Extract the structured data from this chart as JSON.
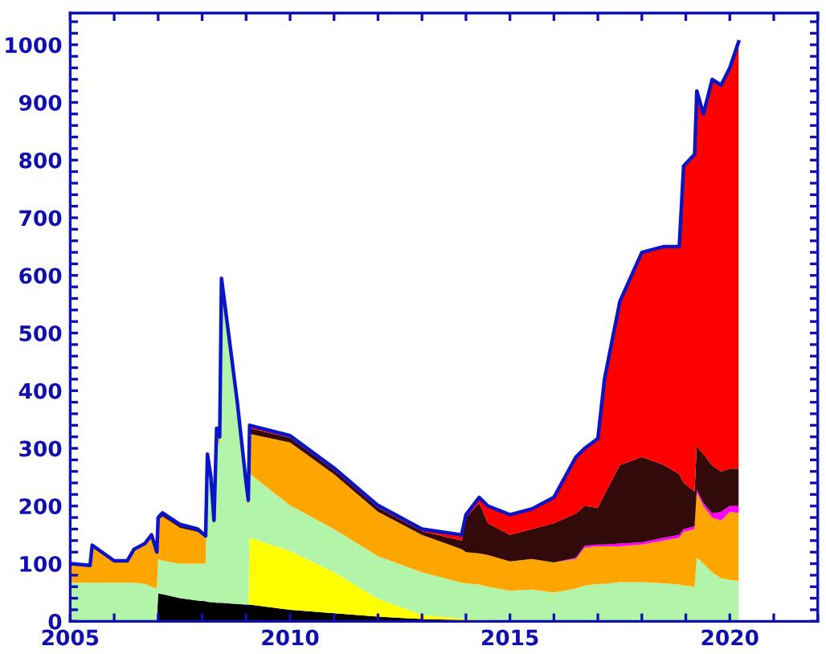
{
  "chart_data": {
    "type": "area",
    "stacked": true,
    "grid": false,
    "legend": false,
    "x": [
      2005.0,
      2005.45,
      2005.5,
      2006.0,
      2006.3,
      2006.45,
      2006.7,
      2006.85,
      2006.97,
      2007.0,
      2007.1,
      2007.5,
      2007.9,
      2008.08,
      2008.12,
      2008.2,
      2008.27,
      2008.33,
      2008.4,
      2008.44,
      2008.6,
      2008.8,
      2009.0,
      2009.05,
      2009.08,
      2010.0,
      2011.0,
      2012.0,
      2013.0,
      2013.9,
      2014.0,
      2014.3,
      2014.5,
      2015.0,
      2015.5,
      2016.0,
      2016.5,
      2016.7,
      2017.0,
      2017.15,
      2017.5,
      2018.0,
      2018.5,
      2018.85,
      2018.95,
      2019.2,
      2019.25,
      2019.4,
      2019.6,
      2019.8,
      2020.0,
      2020.2
    ],
    "series": [
      {
        "color": "#000000",
        "values": [
          0,
          0,
          0,
          0,
          0,
          0,
          0,
          0,
          0,
          48,
          47,
          40,
          36,
          35,
          34,
          33,
          33,
          32,
          32,
          32,
          31,
          30,
          29,
          29,
          29,
          20,
          14,
          8,
          4,
          2,
          2,
          1,
          1,
          0,
          0,
          0,
          0,
          0,
          0,
          0,
          0,
          0,
          0,
          0,
          0,
          0,
          0,
          0,
          0,
          0,
          0,
          0
        ]
      },
      {
        "color": "#ffff00",
        "values": [
          0,
          0,
          0,
          0,
          0,
          0,
          0,
          0,
          0,
          0,
          0,
          0,
          0,
          0,
          0,
          0,
          0,
          0,
          0,
          0,
          0,
          0,
          0,
          0,
          116,
          102,
          71,
          31,
          7,
          3,
          2,
          2,
          1,
          0,
          0,
          0,
          0,
          0,
          0,
          0,
          0,
          0,
          0,
          0,
          0,
          0,
          0,
          0,
          0,
          0,
          0,
          0
        ]
      },
      {
        "color": "#b3f5a8",
        "values": [
          67,
          67,
          67,
          67,
          67,
          67,
          65,
          60,
          57,
          60,
          58,
          60,
          64,
          65,
          236,
          202,
          127,
          283,
          273,
          538,
          449,
          330,
          196,
          166,
          111,
          79,
          75,
          74,
          74,
          62,
          62,
          61,
          58,
          53,
          55,
          50,
          57,
          62,
          65,
          65,
          68,
          68,
          66,
          64,
          62,
          60,
          111,
          100,
          85,
          75,
          72,
          70
        ]
      },
      {
        "color": "#ffa500",
        "values": [
          33,
          30,
          65,
          38,
          38,
          58,
          70,
          90,
          63,
          67,
          77,
          62,
          55,
          45,
          15,
          10,
          10,
          15,
          10,
          18,
          13,
          13,
          10,
          10,
          69,
          109,
          95,
          77,
          65,
          58,
          54,
          54,
          55,
          51,
          53,
          52,
          51,
          66,
          65,
          65,
          62,
          65,
          74,
          81,
          93,
          100,
          112,
          100,
          95,
          100,
          118,
          118
        ]
      },
      {
        "color": "#ff00ff",
        "values": [
          0,
          0,
          0,
          0,
          0,
          0,
          0,
          0,
          0,
          0,
          0,
          0,
          0,
          0,
          0,
          0,
          0,
          0,
          0,
          0,
          0,
          0,
          0,
          0,
          0,
          0,
          0,
          0,
          0,
          0,
          0,
          0,
          0,
          0,
          0,
          0,
          2,
          3,
          3,
          3,
          5,
          4,
          5,
          5,
          5,
          5,
          5,
          5,
          7,
          15,
          10,
          12
        ]
      },
      {
        "color": "#330a0a",
        "values": [
          0,
          0,
          0,
          0,
          0,
          0,
          0,
          0,
          0,
          5,
          6,
          6,
          5,
          3,
          5,
          5,
          5,
          5,
          5,
          7,
          7,
          7,
          5,
          5,
          10,
          8,
          7,
          7,
          6,
          15,
          60,
          87,
          55,
          46,
          52,
          68,
          77,
          69,
          64,
          87,
          136,
          148,
          126,
          105,
          80,
          60,
          76,
          85,
          83,
          70,
          65,
          65
        ]
      },
      {
        "color": "#ff0000",
        "values": [
          0,
          0,
          0,
          0,
          0,
          0,
          0,
          0,
          0,
          0,
          0,
          0,
          0,
          0,
          0,
          0,
          0,
          0,
          0,
          0,
          0,
          0,
          0,
          0,
          5,
          4,
          4,
          4,
          4,
          10,
          5,
          10,
          30,
          35,
          35,
          45,
          98,
          100,
          120,
          200,
          284,
          355,
          379,
          395,
          550,
          585,
          616,
          590,
          670,
          670,
          695,
          740
        ]
      }
    ],
    "xlim": [
      2005,
      2022
    ],
    "xticks": [
      2005,
      {
        "value": 2006,
        "label": null
      },
      {
        "value": 2007,
        "label": null
      },
      {
        "value": 2008,
        "label": null
      },
      {
        "value": 2009,
        "label": null
      },
      2010,
      {
        "value": 2011,
        "label": null
      },
      {
        "value": 2012,
        "label": null
      },
      {
        "value": 2013,
        "label": null
      },
      {
        "value": 2014,
        "label": null
      },
      2015,
      {
        "value": 2016,
        "label": null
      },
      {
        "value": 2017,
        "label": null
      },
      {
        "value": 2018,
        "label": null
      },
      {
        "value": 2019,
        "label": null
      },
      2020,
      {
        "value": 2021,
        "label": null
      },
      {
        "value": 2022,
        "label": null
      }
    ],
    "ylim": [
      0,
      1055
    ],
    "yticks": [
      0,
      {
        "value": 20,
        "label": null
      },
      {
        "value": 40,
        "label": null
      },
      {
        "value": 60,
        "label": null
      },
      {
        "value": 80,
        "label": null
      },
      100,
      {
        "value": 120,
        "label": null
      },
      {
        "value": 140,
        "label": null
      },
      {
        "value": 160,
        "label": null
      },
      {
        "value": 180,
        "label": null
      },
      200,
      {
        "value": 220,
        "label": null
      },
      {
        "value": 240,
        "label": null
      },
      {
        "value": 260,
        "label": null
      },
      {
        "value": 280,
        "label": null
      },
      300,
      {
        "value": 320,
        "label": null
      },
      {
        "value": 340,
        "label": null
      },
      {
        "value": 360,
        "label": null
      },
      {
        "value": 380,
        "label": null
      },
      400,
      {
        "value": 420,
        "label": null
      },
      {
        "value": 440,
        "label": null
      },
      {
        "value": 460,
        "label": null
      },
      {
        "value": 480,
        "label": null
      },
      500,
      {
        "value": 520,
        "label": null
      },
      {
        "value": 540,
        "label": null
      },
      {
        "value": 560,
        "label": null
      },
      {
        "value": 580,
        "label": null
      },
      600,
      {
        "value": 620,
        "label": null
      },
      {
        "value": 640,
        "label": null
      },
      {
        "value": 660,
        "label": null
      },
      {
        "value": 680,
        "label": null
      },
      700,
      {
        "value": 720,
        "label": null
      },
      {
        "value": 740,
        "label": null
      },
      {
        "value": 760,
        "label": null
      },
      {
        "value": 780,
        "label": null
      },
      800,
      {
        "value": 820,
        "label": null
      },
      {
        "value": 840,
        "label": null
      },
      {
        "value": 860,
        "label": null
      },
      {
        "value": 880,
        "label": null
      },
      900,
      {
        "value": 920,
        "label": null
      },
      {
        "value": 940,
        "label": null
      },
      {
        "value": 960,
        "label": null
      },
      {
        "value": 980,
        "label": null
      },
      1000,
      {
        "value": 1020,
        "label": null
      },
      {
        "value": 1040,
        "label": null
      }
    ]
  }
}
